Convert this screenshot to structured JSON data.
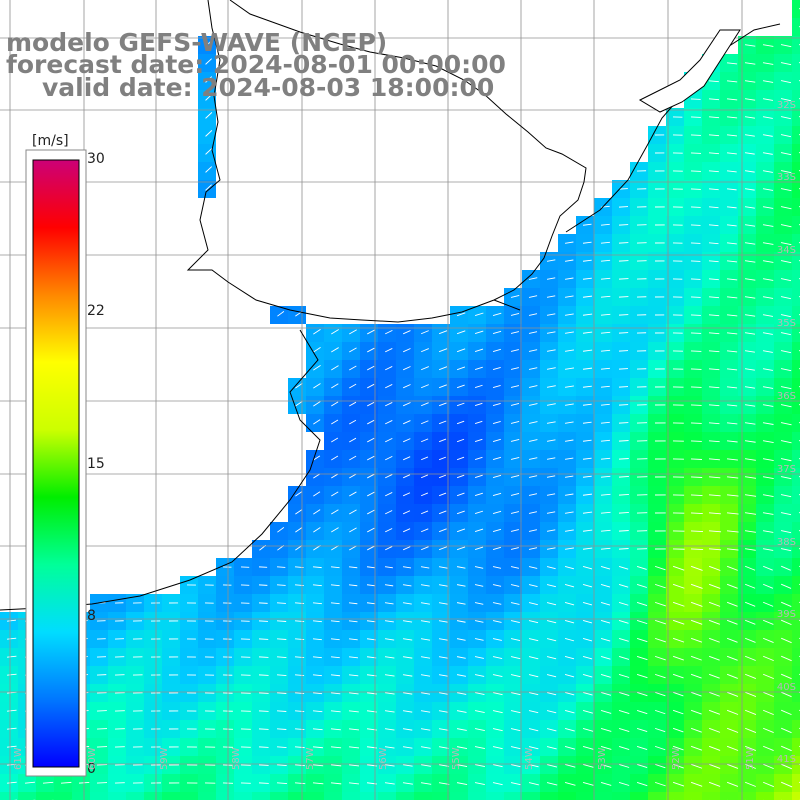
{
  "title": {
    "model": "modelo GEFS-WAVE (NCEP)",
    "forecast": "forecast date: 2024-08-01 00:00:00",
    "valid": "valid date: 2024-08-03 18:00:00"
  },
  "colorbar": {
    "unit": "[m/s]",
    "ticks": [
      "30",
      "22",
      "15",
      "8",
      "0"
    ],
    "colors": [
      "#0000ff",
      "#0077ff",
      "#00ddff",
      "#00ff99",
      "#00ee00",
      "#ccff00",
      "#ffff00",
      "#ff8800",
      "#ff0000",
      "#cc0077"
    ]
  },
  "map": {
    "lat_labels": [
      "32S",
      "33S",
      "34S",
      "35S",
      "36S",
      "37S",
      "38S",
      "39S",
      "40S",
      "41S"
    ],
    "lon_labels": [
      "61W",
      "60W",
      "59W",
      "58W",
      "57W",
      "56W",
      "55W",
      "54W",
      "53W",
      "52W",
      "51W"
    ],
    "colors": {
      "land": "#ffffff",
      "grid": "#909090",
      "coast": "#000000",
      "arrow": "#ffffff"
    }
  }
}
